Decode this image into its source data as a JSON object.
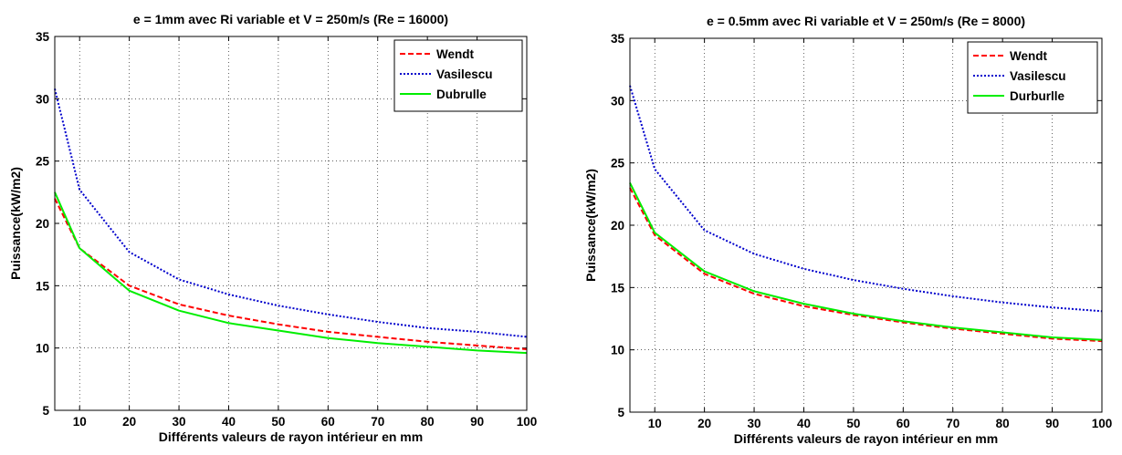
{
  "chart_data": [
    {
      "type": "line",
      "title": "e = 1mm avec Ri variable et V = 250m/s (Re = 16000)",
      "xlabel": "Différents valeurs de rayon intérieur en mm",
      "ylabel": "Puissance(kW/m2)",
      "xlim": [
        5,
        100
      ],
      "ylim": [
        5,
        35
      ],
      "xticks": [
        10,
        20,
        30,
        40,
        50,
        60,
        70,
        80,
        90,
        100
      ],
      "yticks": [
        5,
        10,
        15,
        20,
        25,
        30,
        35
      ],
      "grid": true,
      "legend_position": "top-right",
      "x": [
        5,
        10,
        20,
        30,
        40,
        50,
        60,
        70,
        80,
        90,
        100
      ],
      "series": [
        {
          "name": "Wendt",
          "color": "#ff0000",
          "style": "dashed",
          "values": [
            22.0,
            18.0,
            15.0,
            13.5,
            12.6,
            11.9,
            11.3,
            10.9,
            10.5,
            10.2,
            9.9
          ]
        },
        {
          "name": "Vasilescu",
          "color": "#0000cc",
          "style": "dotted",
          "values": [
            30.8,
            22.7,
            17.7,
            15.5,
            14.3,
            13.4,
            12.7,
            12.1,
            11.6,
            11.3,
            10.9
          ]
        },
        {
          "name": "Dubrulle",
          "color": "#00ee00",
          "style": "solid",
          "values": [
            22.5,
            18.0,
            14.6,
            13.0,
            12.0,
            11.4,
            10.8,
            10.4,
            10.1,
            9.8,
            9.6
          ]
        }
      ]
    },
    {
      "type": "line",
      "title": "e = 0.5mm avec Ri variable et V = 250m/s (Re = 8000)",
      "xlabel": "Différents valeurs de rayon intérieur en mm",
      "ylabel": "Puissance(kW/m2)",
      "xlim": [
        5,
        100
      ],
      "ylim": [
        5,
        35
      ],
      "xticks": [
        10,
        20,
        30,
        40,
        50,
        60,
        70,
        80,
        90,
        100
      ],
      "yticks": [
        5,
        10,
        15,
        20,
        25,
        30,
        35
      ],
      "grid": true,
      "legend_position": "top-right",
      "x": [
        5,
        10,
        20,
        30,
        40,
        50,
        60,
        70,
        80,
        90,
        100
      ],
      "series": [
        {
          "name": "Wendt",
          "color": "#ff0000",
          "style": "dashed",
          "values": [
            23.0,
            19.2,
            16.1,
            14.5,
            13.5,
            12.8,
            12.2,
            11.7,
            11.3,
            10.9,
            10.7
          ]
        },
        {
          "name": "Vasilescu",
          "color": "#0000cc",
          "style": "dotted",
          "values": [
            31.2,
            24.5,
            19.6,
            17.7,
            16.5,
            15.6,
            14.9,
            14.3,
            13.8,
            13.4,
            13.1
          ]
        },
        {
          "name": "Durburlle",
          "color": "#00ee00",
          "style": "solid",
          "values": [
            23.4,
            19.4,
            16.3,
            14.7,
            13.7,
            12.9,
            12.3,
            11.8,
            11.4,
            11.0,
            10.8
          ]
        }
      ]
    }
  ]
}
